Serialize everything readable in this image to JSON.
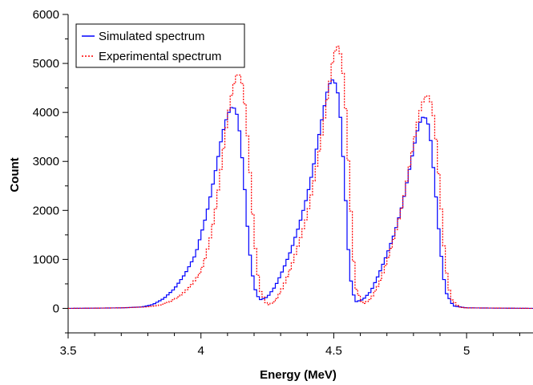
{
  "chart_data": {
    "type": "line",
    "title": "",
    "xlabel": "Energy (MeV)",
    "ylabel": "Count",
    "xlim": [
      3.5,
      5.25
    ],
    "ylim": [
      -500,
      6000
    ],
    "grid": false,
    "legend_position": "top-left",
    "x_ticks": [
      3.5,
      4,
      4.5,
      5
    ],
    "x_tick_labels": [
      "3.5",
      "4",
      "4.5",
      "5"
    ],
    "y_ticks": [
      0,
      1000,
      2000,
      3000,
      4000,
      5000,
      6000
    ],
    "y_tick_labels": [
      "0",
      "1000",
      "2000",
      "3000",
      "4000",
      "5000",
      "6000"
    ],
    "series": [
      {
        "name": "Simulated spectrum",
        "color": "#0000ff",
        "style": "solid",
        "x": [
          3.5,
          3.7,
          3.78,
          3.82,
          3.86,
          3.9,
          3.94,
          3.98,
          4.0,
          4.02,
          4.04,
          4.06,
          4.08,
          4.1,
          4.12,
          4.14,
          4.16,
          4.18,
          4.2,
          4.22,
          4.25,
          4.28,
          4.31,
          4.34,
          4.37,
          4.4,
          4.42,
          4.44,
          4.46,
          4.48,
          4.5,
          4.52,
          4.54,
          4.56,
          4.58,
          4.61,
          4.64,
          4.67,
          4.7,
          4.73,
          4.76,
          4.78,
          4.8,
          4.82,
          4.84,
          4.86,
          4.88,
          4.9,
          4.92,
          4.95,
          5.0,
          5.25
        ],
        "y": [
          0,
          10,
          30,
          80,
          200,
          400,
          700,
          1100,
          1500,
          1900,
          2400,
          2950,
          3550,
          3950,
          4150,
          3900,
          2800,
          1300,
          450,
          170,
          230,
          450,
          800,
          1200,
          1700,
          2300,
          2800,
          3400,
          4000,
          4550,
          4700,
          4300,
          2700,
          700,
          130,
          180,
          350,
          700,
          1100,
          1550,
          2150,
          2700,
          3250,
          3750,
          3950,
          3700,
          2600,
          1300,
          350,
          50,
          10,
          0
        ]
      },
      {
        "name": "Experimental spectrum",
        "color": "#ff0000",
        "style": "dotted",
        "x": [
          3.5,
          3.7,
          3.8,
          3.84,
          3.88,
          3.92,
          3.96,
          4.0,
          4.02,
          4.04,
          4.06,
          4.08,
          4.1,
          4.12,
          4.14,
          4.16,
          4.18,
          4.2,
          4.22,
          4.25,
          4.28,
          4.31,
          4.34,
          4.37,
          4.4,
          4.42,
          4.44,
          4.46,
          4.48,
          4.5,
          4.52,
          4.54,
          4.56,
          4.58,
          4.61,
          4.64,
          4.67,
          4.7,
          4.73,
          4.76,
          4.78,
          4.8,
          4.82,
          4.84,
          4.86,
          4.88,
          4.9,
          4.92,
          4.94,
          4.97,
          5.0,
          5.25
        ],
        "y": [
          0,
          10,
          30,
          60,
          130,
          250,
          450,
          750,
          1100,
          1550,
          2200,
          3050,
          3900,
          4500,
          4850,
          4500,
          3200,
          1500,
          400,
          60,
          150,
          450,
          850,
          1350,
          1900,
          2450,
          3050,
          3700,
          4450,
          5200,
          5400,
          4600,
          2500,
          450,
          80,
          200,
          500,
          950,
          1500,
          2150,
          2750,
          3350,
          3950,
          4300,
          4350,
          3800,
          2400,
          900,
          200,
          30,
          10,
          0
        ]
      }
    ]
  }
}
